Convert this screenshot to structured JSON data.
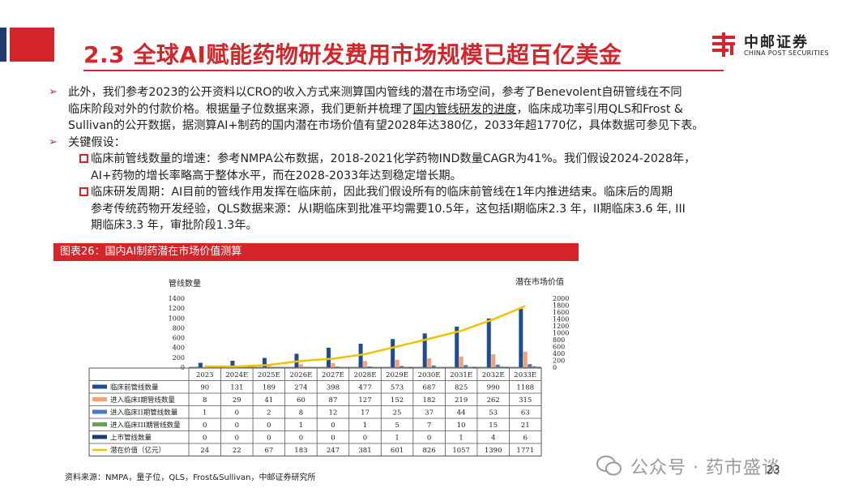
{
  "header": {
    "title": "2.3 全球AI赋能药物研发费用市场规模已超百亿美金",
    "logo_cn": "中邮证券",
    "logo_en": "CHINA POST SECURITIES"
  },
  "bullets": {
    "p1_line1": "此外，我们参考2023的公开资料以CRO的收入方式来测算国内管线的潜在市场空间，参考了Benevolent自研管线在不同",
    "p1_line2a": "临床阶段对外的付款价格。根据量子位数据来源，我们更新并梳理了",
    "p1_line2_link": "国内管线研发的进度",
    "p1_line2b": "，临床成功率引用QLS和Frost &",
    "p1_line3": "Sullivan的公开数据，据测算AI+制药的国内潜在市场价值有望2028年达380亿，2033年超1770亿，具体数据可参见下表。",
    "p2": "关键假设：",
    "s1_line1": "临床前管线数量的增速：参考NMPA公布数据，2018-2021化学药物IND数量CAGR为41%。我们假设2024-2028年，",
    "s1_line2": "AI+药物的增长率略高于整体水平，而在2028-2033年达到稳定增长期。",
    "s2_line1": "临床研发周期：AI目前的管线作用发挥在临床前，因此我们假设所有的临床前管线在1年内推进结束。临床后的周期",
    "s2_line2": "参考传统药物开发经验，QLS数据来源：从I期临床到批准平均需要10.5年，这包括I期临床2.3 年，II期临床3.6 年, III",
    "s2_line3": "期临床3.3 年，审批阶段1.3年。"
  },
  "figure": {
    "label": "图表26：国内AI制药潜在市场价值测算"
  },
  "chart_data": {
    "type": "bar",
    "left_axis_title": "管线数量",
    "right_axis_title": "潜在市场价值",
    "left_ticks": [
      "0",
      "200",
      "400",
      "600",
      "800",
      "1000",
      "1200",
      "1400"
    ],
    "right_ticks": [
      "0",
      "200",
      "400",
      "600",
      "800",
      "1000",
      "1200",
      "1400",
      "1600",
      "1800",
      "2000"
    ],
    "ylim_left": [
      0,
      1400
    ],
    "ylim_right": [
      0,
      2000
    ],
    "categories": [
      "2023",
      "2024E",
      "2025E",
      "2026E",
      "2027E",
      "2028E",
      "2029E",
      "2030E",
      "2031E",
      "2032E",
      "2033E"
    ],
    "series": [
      {
        "name": "临床前管线数量",
        "color": "#1f4e8c",
        "kind": "bar",
        "values": [
          90,
          131,
          189,
          274,
          398,
          477,
          573,
          687,
          825,
          990,
          1188
        ],
        "labels": [
          "90",
          "131",
          "189",
          "274",
          "398",
          "477",
          "573",
          "687",
          "825",
          "990",
          "1188"
        ]
      },
      {
        "name": "进入临床I期管线数量",
        "color": "#f4a07a",
        "kind": "bar",
        "values": [
          8,
          29,
          41,
          60,
          87,
          127,
          152,
          182,
          219,
          262,
          315
        ],
        "labels": [
          "8",
          "29",
          "41",
          "60",
          "87",
          "127",
          "152",
          "182",
          "219",
          "262",
          "315"
        ]
      },
      {
        "name": "进入临床II期管线数量",
        "color": "#4a78c2",
        "kind": "bar",
        "values": [
          1,
          0,
          2,
          8,
          12,
          17,
          25,
          37,
          44,
          53,
          63
        ],
        "labels": [
          "1",
          "0",
          "2",
          "8",
          "12",
          "17",
          "25",
          "37",
          "44",
          "53",
          "63"
        ]
      },
      {
        "name": "进入临床III期管线数量",
        "color": "#5aab46",
        "kind": "bar",
        "values": [
          0,
          0,
          0,
          1,
          0,
          1,
          5,
          7,
          10,
          15,
          21
        ],
        "labels": [
          "0",
          "0",
          "0",
          "1",
          "0",
          "1",
          "5",
          "7",
          "10",
          "15",
          "21"
        ]
      },
      {
        "name": "上市管线数量",
        "color": "#1f3a6d",
        "kind": "bar",
        "values": [
          0,
          0,
          0,
          0,
          0,
          0,
          1,
          0,
          1,
          4,
          6
        ],
        "labels": [
          "0",
          "0",
          "0",
          "0",
          "0",
          "0",
          "1",
          "0",
          "1",
          "4",
          "6"
        ]
      },
      {
        "name": "潜在价值（亿元）",
        "color": "#f2c200",
        "kind": "line",
        "axis": "right",
        "values": [
          24,
          22,
          67,
          183,
          247,
          381,
          601,
          826,
          1057,
          1390,
          1771
        ],
        "labels": [
          "24",
          "22",
          "67",
          "183",
          "247",
          "381",
          "601",
          "826",
          "1057",
          "1390",
          "1771"
        ]
      }
    ]
  },
  "footer": {
    "source": "资料来源：NMPA，量子位，QLS，Frost&Sullivan，中邮证券研究所",
    "page": "23",
    "watermark": "公众号 · 药市盛谈"
  }
}
